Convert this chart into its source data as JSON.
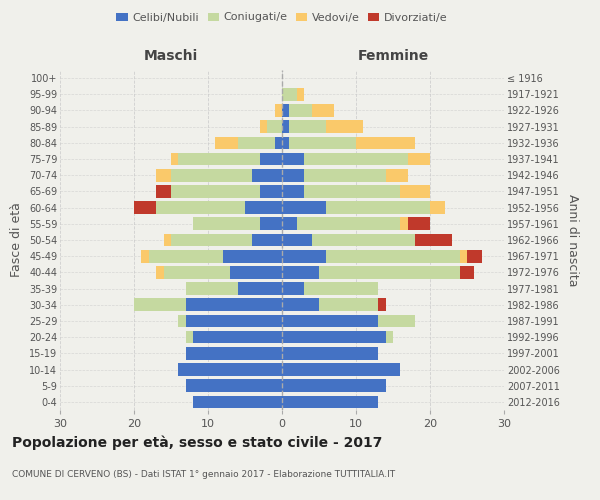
{
  "age_groups": [
    "0-4",
    "5-9",
    "10-14",
    "15-19",
    "20-24",
    "25-29",
    "30-34",
    "35-39",
    "40-44",
    "45-49",
    "50-54",
    "55-59",
    "60-64",
    "65-69",
    "70-74",
    "75-79",
    "80-84",
    "85-89",
    "90-94",
    "95-99",
    "100+"
  ],
  "birth_years": [
    "2012-2016",
    "2007-2011",
    "2002-2006",
    "1997-2001",
    "1992-1996",
    "1987-1991",
    "1982-1986",
    "1977-1981",
    "1972-1976",
    "1967-1971",
    "1962-1966",
    "1957-1961",
    "1952-1956",
    "1947-1951",
    "1942-1946",
    "1937-1941",
    "1932-1936",
    "1927-1931",
    "1922-1926",
    "1917-1921",
    "≤ 1916"
  ],
  "male_celibi": [
    12,
    13,
    14,
    13,
    12,
    13,
    13,
    6,
    7,
    8,
    4,
    3,
    5,
    3,
    4,
    3,
    1,
    0,
    0,
    0,
    0
  ],
  "male_coniugati": [
    0,
    0,
    0,
    0,
    1,
    1,
    7,
    7,
    9,
    10,
    11,
    9,
    12,
    12,
    11,
    11,
    5,
    2,
    0,
    0,
    0
  ],
  "male_vedovi": [
    0,
    0,
    0,
    0,
    0,
    0,
    0,
    0,
    1,
    1,
    1,
    0,
    0,
    0,
    2,
    1,
    3,
    1,
    1,
    0,
    0
  ],
  "male_divorziati": [
    0,
    0,
    0,
    0,
    0,
    0,
    0,
    0,
    0,
    0,
    0,
    0,
    3,
    2,
    0,
    0,
    0,
    0,
    0,
    0,
    0
  ],
  "female_celibi": [
    13,
    14,
    16,
    13,
    14,
    13,
    5,
    3,
    5,
    6,
    4,
    2,
    6,
    3,
    3,
    3,
    1,
    1,
    1,
    0,
    0
  ],
  "female_coniugati": [
    0,
    0,
    0,
    0,
    1,
    5,
    8,
    10,
    19,
    18,
    14,
    14,
    14,
    13,
    11,
    14,
    9,
    5,
    3,
    2,
    0
  ],
  "female_vedovi": [
    0,
    0,
    0,
    0,
    0,
    0,
    0,
    0,
    0,
    1,
    0,
    1,
    2,
    4,
    3,
    3,
    8,
    5,
    3,
    1,
    0
  ],
  "female_divorziati": [
    0,
    0,
    0,
    0,
    0,
    0,
    1,
    0,
    2,
    2,
    5,
    3,
    0,
    0,
    0,
    0,
    0,
    0,
    0,
    0,
    0
  ],
  "color_celibi": "#4472C4",
  "color_coniugati": "#C5D9A0",
  "color_vedovi": "#FAC96A",
  "color_divorziati": "#C0392B",
  "title": "Popolazione per età, sesso e stato civile - 2017",
  "subtitle": "COMUNE DI CERVENO (BS) - Dati ISTAT 1° gennaio 2017 - Elaborazione TUTTITALIA.IT",
  "ylabel_left": "Fasce di età",
  "ylabel_right": "Anni di nascita",
  "xlabel_left": "Maschi",
  "xlabel_right": "Femmine",
  "xlim": 30,
  "bg_color": "#f0f0eb",
  "grid_color": "#cccccc"
}
